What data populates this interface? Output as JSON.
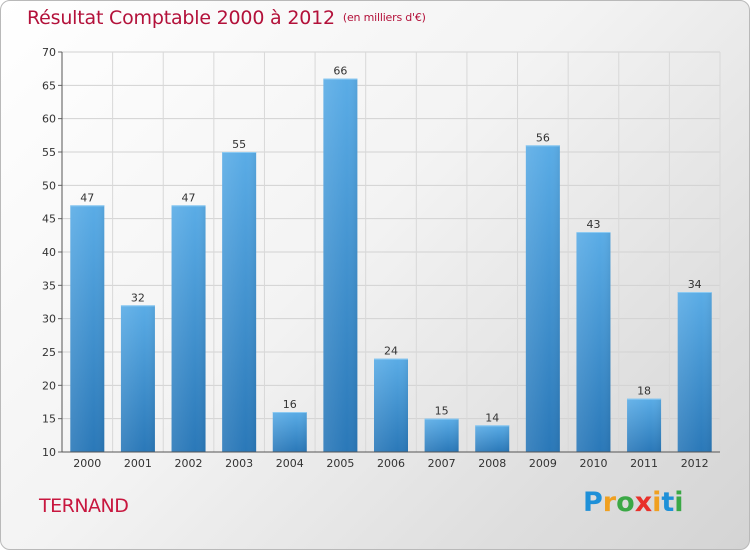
{
  "title": "Résultat Comptable 2000 à 2012",
  "subtitle": "(en milliers d'€)",
  "commune": "TERNAND",
  "logo": {
    "letters": [
      "P",
      "r",
      "o",
      "x",
      "i",
      "t",
      "i"
    ],
    "colors": [
      "#1e90d8",
      "#f0a020",
      "#3aa845",
      "#e8302a",
      "#f0a020",
      "#1e90d8",
      "#3aa845"
    ]
  },
  "colors": {
    "bar_top": "#5aace6",
    "bar_bottom": "#2a78b8",
    "title": "#b3113a"
  },
  "chart_data": {
    "type": "bar",
    "title": "Résultat Comptable 2000 à 2012",
    "subtitle": "(en milliers d'€)",
    "xlabel": "",
    "ylabel": "",
    "categories": [
      "2000",
      "2001",
      "2002",
      "2003",
      "2004",
      "2005",
      "2006",
      "2007",
      "2008",
      "2009",
      "2010",
      "2011",
      "2012"
    ],
    "values": [
      47,
      32,
      47,
      55,
      16,
      66,
      24,
      15,
      14,
      56,
      43,
      18,
      34
    ],
    "ylim": [
      10,
      70
    ],
    "yticks": [
      10,
      15,
      20,
      25,
      30,
      35,
      40,
      45,
      50,
      55,
      60,
      65,
      70
    ],
    "grid": true
  }
}
